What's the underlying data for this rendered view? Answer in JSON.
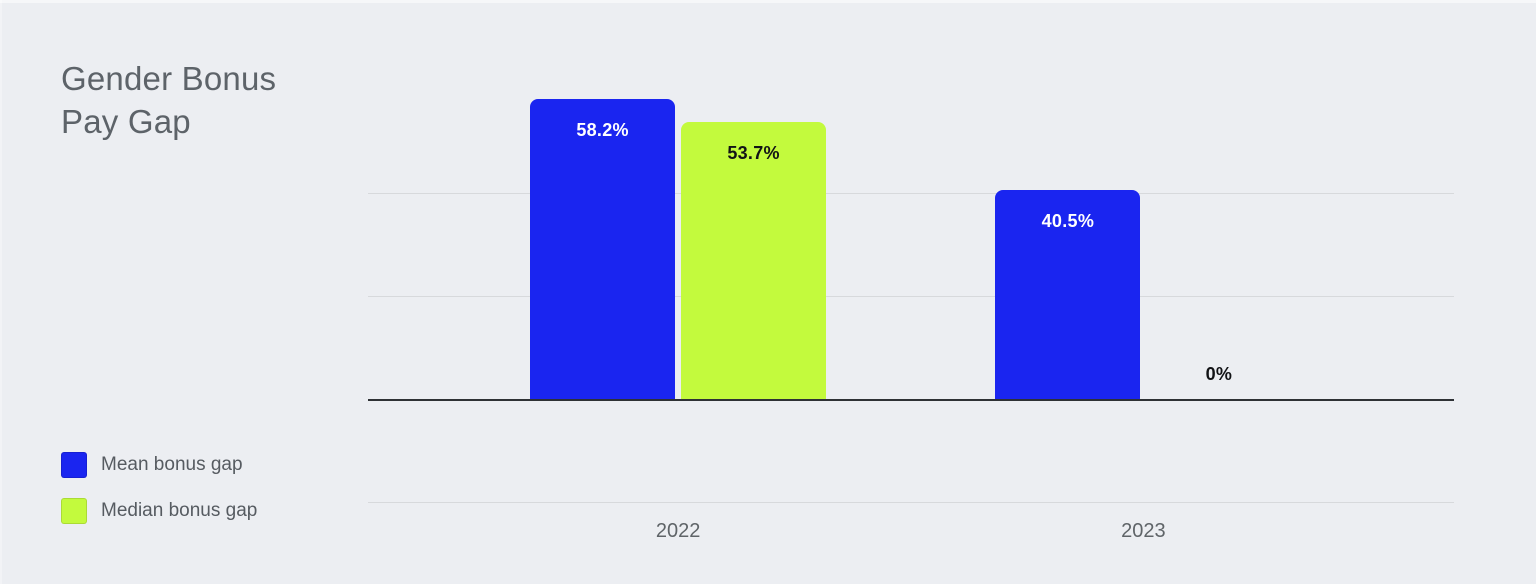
{
  "chart_data": {
    "type": "bar",
    "title": "Gender Bonus\nPay Gap",
    "categories": [
      "2022",
      "2023"
    ],
    "series": [
      {
        "name": "Mean bonus gap",
        "color": "#1a25f0",
        "label_text_color": "#ffffff",
        "values": [
          58.2,
          40.5
        ],
        "labels": [
          "58.2%",
          "40.5%"
        ]
      },
      {
        "name": "Median bonus gap",
        "color": "#c3fa3d",
        "label_text_color": "#121316",
        "values": [
          53.7,
          0
        ],
        "labels": [
          "53.7%",
          "0%"
        ]
      }
    ],
    "ylim": [
      -20,
      60
    ],
    "gridline_values": [
      40,
      20,
      0,
      -20
    ],
    "grid": true,
    "legend_position": "bottom-left",
    "xlabel": "",
    "ylabel": ""
  },
  "colors": {
    "background": "#eceef2",
    "gridline": "#d7d9dc",
    "axis_line": "#2e3135",
    "title_text": "#5d6369",
    "tick_text": "#5f6468",
    "legend_text": "#565b61"
  }
}
